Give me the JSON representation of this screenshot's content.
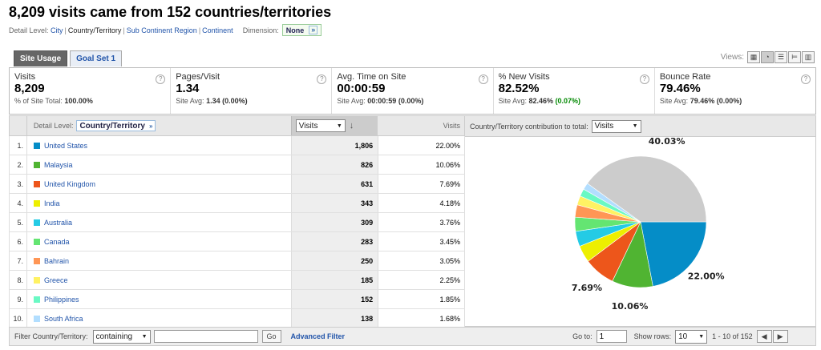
{
  "title": "8,209 visits came from 152 countries/territories",
  "detail_level": {
    "label": "Detail Level:",
    "options": [
      "City",
      "Country/Territory",
      "Sub Continent Region",
      "Continent"
    ],
    "current_index": 1
  },
  "dimension": {
    "label": "Dimension:",
    "value": "None"
  },
  "tabs": [
    {
      "label": "Site Usage",
      "active": true
    },
    {
      "label": "Goal Set 1",
      "active": false
    }
  ],
  "views_label": "Views:",
  "metrics": [
    {
      "label": "Visits",
      "value": "8,209",
      "sub_prefix": "% of Site Total:",
      "sub_value": "100.00%",
      "sub_delta": ""
    },
    {
      "label": "Pages/Visit",
      "value": "1.34",
      "sub_prefix": "Site Avg:",
      "sub_value": "1.34",
      "sub_delta": "(0.00%)"
    },
    {
      "label": "Avg. Time on Site",
      "value": "00:00:59",
      "sub_prefix": "Site Avg:",
      "sub_value": "00:00:59",
      "sub_delta": "(0.00%)"
    },
    {
      "label": "% New Visits",
      "value": "82.52%",
      "sub_prefix": "Site Avg:",
      "sub_value": "82.46%",
      "sub_delta": "(0.07%)"
    },
    {
      "label": "Bounce Rate",
      "value": "79.46%",
      "sub_prefix": "Site Avg:",
      "sub_value": "79.46%",
      "sub_delta": "(0.00%)"
    }
  ],
  "table": {
    "detail_label": "Detail Level:",
    "detail_value": "Country/Territory",
    "metric_select": "Visits",
    "col_header": "Visits",
    "rows": [
      {
        "n": "1.",
        "name": "United States",
        "visits": "1,806",
        "pct": "22.00%",
        "color": "#058dc7"
      },
      {
        "n": "2.",
        "name": "Malaysia",
        "visits": "826",
        "pct": "10.06%",
        "color": "#50b432"
      },
      {
        "n": "3.",
        "name": "United Kingdom",
        "visits": "631",
        "pct": "7.69%",
        "color": "#ed561b"
      },
      {
        "n": "4.",
        "name": "India",
        "visits": "343",
        "pct": "4.18%",
        "color": "#edef00"
      },
      {
        "n": "5.",
        "name": "Australia",
        "visits": "309",
        "pct": "3.76%",
        "color": "#24cbe5"
      },
      {
        "n": "6.",
        "name": "Canada",
        "visits": "283",
        "pct": "3.45%",
        "color": "#64e572"
      },
      {
        "n": "7.",
        "name": "Bahrain",
        "visits": "250",
        "pct": "3.05%",
        "color": "#ff9655"
      },
      {
        "n": "8.",
        "name": "Greece",
        "visits": "185",
        "pct": "2.25%",
        "color": "#fff263"
      },
      {
        "n": "9.",
        "name": "Philippines",
        "visits": "152",
        "pct": "1.85%",
        "color": "#6af9c4"
      },
      {
        "n": "10.",
        "name": "South Africa",
        "visits": "138",
        "pct": "1.68%",
        "color": "#b2deff"
      }
    ]
  },
  "chart_header": {
    "label": "Country/Territory contribution to total:",
    "select": "Visits"
  },
  "chart_data": {
    "type": "pie",
    "labels": [
      "United States",
      "Malaysia",
      "United Kingdom",
      "India",
      "Australia",
      "Canada",
      "Bahrain",
      "Greece",
      "Philippines",
      "South Africa",
      "Other"
    ],
    "values": [
      22.0,
      10.06,
      7.69,
      4.18,
      3.76,
      3.45,
      3.05,
      2.25,
      1.85,
      1.68,
      40.03
    ],
    "colors": [
      "#058dc7",
      "#50b432",
      "#ed561b",
      "#edef00",
      "#24cbe5",
      "#64e572",
      "#ff9655",
      "#fff263",
      "#6af9c4",
      "#b2deff",
      "#cccccc"
    ],
    "data_labels": [
      "22.00%",
      "10.06%",
      "7.69%",
      "",
      "",
      "",
      "",
      "",
      "",
      "",
      "40.03%"
    ]
  },
  "footer": {
    "filter_label": "Filter Country/Territory:",
    "filter_mode": "containing",
    "filter_value": "",
    "go_label": "Go",
    "advanced_label": "Advanced Filter",
    "goto_label": "Go to:",
    "goto_value": "1",
    "rows_label": "Show rows:",
    "rows_value": "10",
    "range": "1 - 10 of 152"
  }
}
